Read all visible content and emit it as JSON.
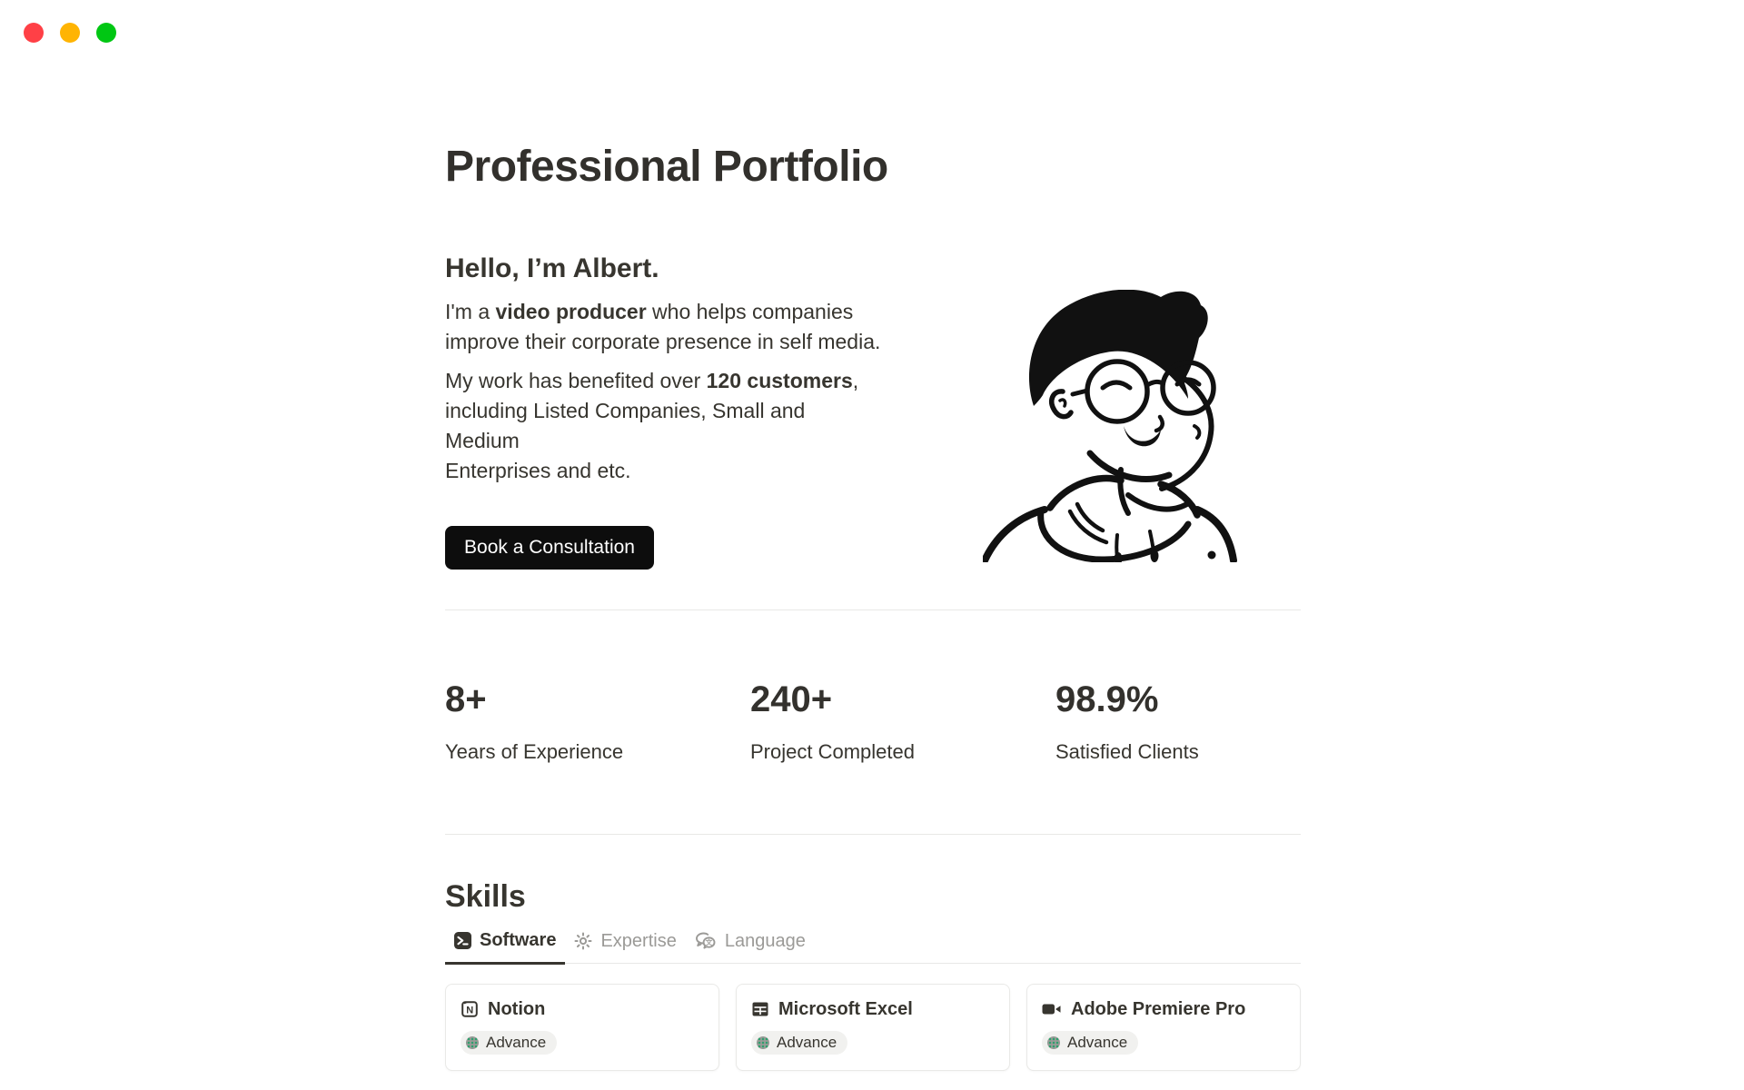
{
  "window": {
    "controls": [
      {
        "name": "close",
        "color": "#FF4046"
      },
      {
        "name": "minimize",
        "color": "#FFB403"
      },
      {
        "name": "zoom",
        "color": "#00C713"
      }
    ]
  },
  "page": {
    "title": "Professional Portfolio",
    "hero": {
      "heading": "Hello, I’m Albert.",
      "p1_lines": [
        [
          {
            "t": "I'm a "
          },
          {
            "t": "video producer",
            "b": true
          },
          {
            "t": " who helps companies"
          }
        ],
        [
          {
            "t": "improve their corporate presence in self media."
          }
        ]
      ],
      "p2_lines": [
        [
          {
            "t": "My work has benefited over "
          },
          {
            "t": "120 customers",
            "b": true
          },
          {
            "t": ","
          }
        ],
        [
          {
            "t": "including Listed Companies, Small and Medium"
          }
        ],
        [
          {
            "t": "Enterprises and etc."
          }
        ]
      ],
      "cta_label": "Book a Consultation",
      "illustration": "man-with-glasses-and-hoodie-line-art"
    },
    "stats": [
      {
        "value": "8+",
        "label": "Years of Experience"
      },
      {
        "value": "240+",
        "label": "Project Completed"
      },
      {
        "value": "98.9%",
        "label": "Satisfied Clients"
      }
    ],
    "skills": {
      "heading": "Skills",
      "tabs": [
        {
          "label": "Software",
          "icon": "terminal-icon",
          "active": true
        },
        {
          "label": "Expertise",
          "icon": "sun-icon",
          "active": false
        },
        {
          "label": "Language",
          "icon": "translate-icon",
          "active": false
        }
      ],
      "cards": [
        {
          "title": "Notion",
          "icon": "notion-icon",
          "badge": "Advance"
        },
        {
          "title": "Microsoft Excel",
          "icon": "spreadsheet-icon",
          "badge": "Advance"
        },
        {
          "title": "Adobe Premiere Pro",
          "icon": "video-camera-icon",
          "badge": "Advance"
        }
      ]
    }
  },
  "colors": {
    "text": "#37352F",
    "muted": "#9B9A97",
    "divider": "#E8E8E6",
    "button_bg": "#0D0D0D",
    "badge_bg": "#F1F1EF",
    "badge_dot_green": "#2EA06D",
    "traffic_red": "#FF4046",
    "traffic_yellow": "#FFB403",
    "traffic_green": "#00C713"
  }
}
